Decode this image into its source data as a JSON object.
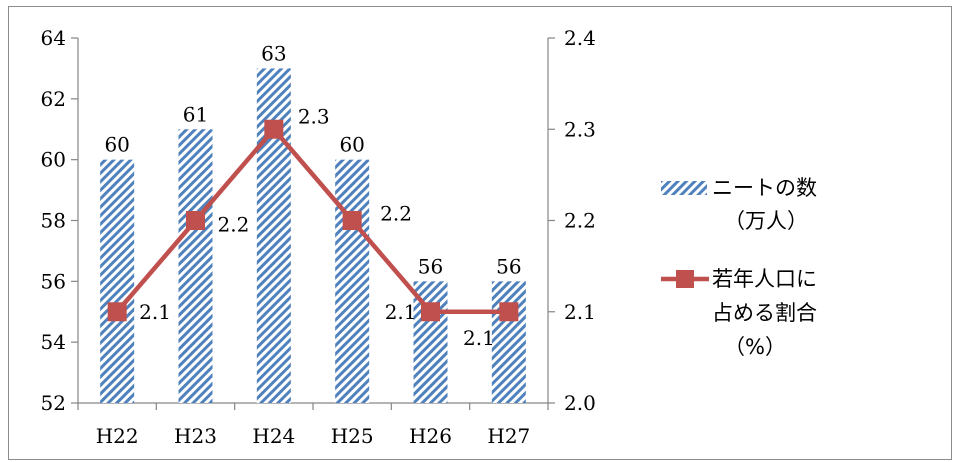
{
  "chart_data": {
    "type": "bar+line",
    "categories": [
      "H22",
      "H23",
      "H24",
      "H25",
      "H26",
      "H27"
    ],
    "series": [
      {
        "name": "ニートの数（万人）",
        "type": "bar",
        "axis": "left",
        "values": [
          60,
          61,
          63,
          60,
          56,
          56
        ],
        "labels": [
          "60",
          "61",
          "63",
          "60",
          "56",
          "56"
        ],
        "color": "#4f81bd",
        "pattern": "diagonal-stripe"
      },
      {
        "name": "若年人口に占める割合（%）",
        "type": "line",
        "axis": "right",
        "values": [
          2.1,
          2.2,
          2.3,
          2.2,
          2.1,
          2.1
        ],
        "labels": [
          "2.1",
          "2.2",
          "2.3",
          "2.2",
          "2.1",
          "2.1"
        ],
        "color": "#c0504d",
        "marker": "square"
      }
    ],
    "y_left": {
      "min": 52,
      "max": 64,
      "step": 2,
      "ticks": [
        "52",
        "54",
        "56",
        "58",
        "60",
        "62",
        "64"
      ]
    },
    "y_right": {
      "min": 2.0,
      "max": 2.4,
      "step": 0.1,
      "ticks": [
        "2.0",
        "2.1",
        "2.2",
        "2.3",
        "2.4"
      ]
    },
    "legend": {
      "position": "right",
      "items": [
        {
          "lines": [
            "ニートの数",
            "（万人）"
          ]
        },
        {
          "lines": [
            "若年人口に",
            "占める割合",
            "（%）"
          ]
        }
      ]
    },
    "grid": false
  }
}
